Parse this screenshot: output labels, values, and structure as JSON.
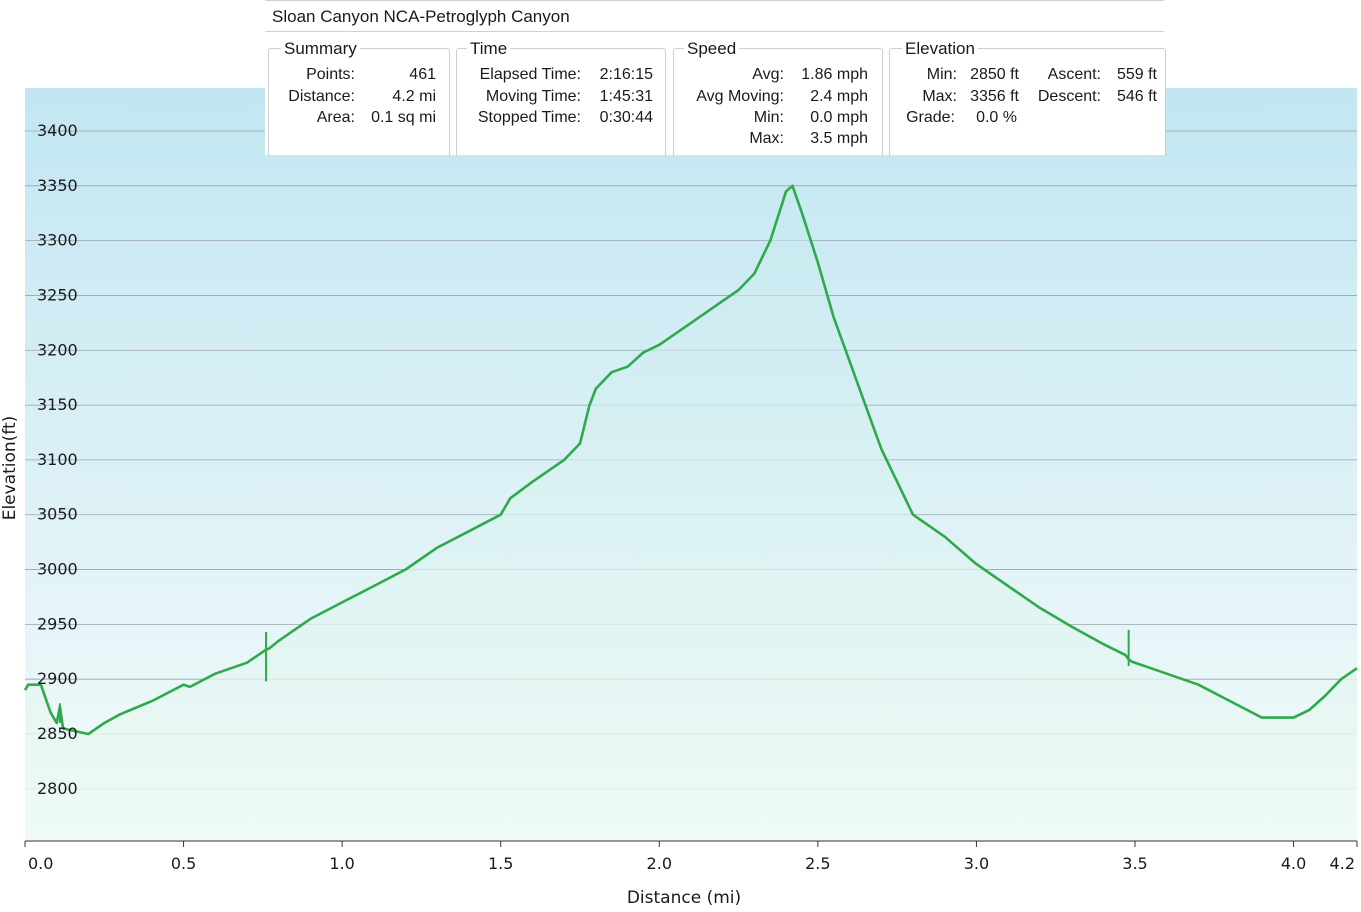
{
  "panel": {
    "title": "Sloan Canyon NCA-Petroglyph Canyon",
    "summary": {
      "heading": "Summary",
      "points_label": "Points:",
      "points": "461",
      "distance_label": "Distance:",
      "distance": "4.2 mi",
      "area_label": "Area:",
      "area": "0.1 sq mi"
    },
    "time": {
      "heading": "Time",
      "elapsed_label": "Elapsed Time:",
      "elapsed": "2:16:15",
      "moving_label": "Moving Time:",
      "moving": "1:45:31",
      "stopped_label": "Stopped Time:",
      "stopped": "0:30:44"
    },
    "speed": {
      "heading": "Speed",
      "avg_label": "Avg:",
      "avg": "1.86 mph",
      "avg_moving_label": "Avg Moving:",
      "avg_moving": "2.4 mph",
      "min_label": "Min:",
      "min": "0.0 mph",
      "max_label": "Max:",
      "max": "3.5 mph"
    },
    "elevation": {
      "heading": "Elevation",
      "min_label": "Min:",
      "min": "2850 ft",
      "max_label": "Max:",
      "max": "3356 ft",
      "grade_label": "Grade:",
      "grade": "0.0 %",
      "ascent_label": "Ascent:",
      "ascent": "559 ft",
      "descent_label": "Descent:",
      "descent": "546 ft"
    }
  },
  "colors": {
    "line": "#2eaa4a",
    "fill_top": "#c6e9ef",
    "fill_bottom": "#eefaf3",
    "plot_top": "#c2e6f2",
    "plot_bottom": "#f4fbfa"
  },
  "chart_data": {
    "type": "area",
    "xlabel": "Distance  (mi)",
    "ylabel": "Elevation(ft)",
    "xlim": [
      0,
      4.2
    ],
    "ylim": [
      2760,
      3460
    ],
    "xticks": [
      "0.0",
      "0.5",
      "1.0",
      "1.5",
      "2.0",
      "2.5",
      "3.0",
      "3.5",
      "4.0",
      "4.2"
    ],
    "xtick_values": [
      0,
      0.5,
      1.0,
      1.5,
      2.0,
      2.5,
      3.0,
      3.5,
      4.0,
      4.2
    ],
    "yticks": [
      "3400",
      "3350",
      "3300",
      "3250",
      "3200",
      "3150",
      "3100",
      "3050",
      "3000",
      "2950",
      "2900",
      "2850",
      "2800"
    ],
    "ytick_values": [
      3400,
      3350,
      3300,
      3250,
      3200,
      3150,
      3100,
      3050,
      3000,
      2950,
      2900,
      2850,
      2800
    ],
    "grid": true,
    "series": [
      {
        "x": [
          0,
          0.01,
          0.05,
          0.08,
          0.1,
          0.11,
          0.12,
          0.2,
          0.25,
          0.3,
          0.4,
          0.5,
          0.52,
          0.6,
          0.7,
          0.75,
          0.76,
          0.77,
          0.8,
          0.9,
          1.0,
          1.1,
          1.2,
          1.3,
          1.4,
          1.5,
          1.53,
          1.6,
          1.7,
          1.75,
          1.78,
          1.8,
          1.85,
          1.9,
          1.95,
          2.0,
          2.1,
          2.2,
          2.25,
          2.3,
          2.35,
          2.4,
          2.42,
          2.45,
          2.5,
          2.55,
          2.6,
          2.65,
          2.7,
          2.8,
          2.9,
          3.0,
          3.1,
          3.2,
          3.3,
          3.4,
          3.47,
          3.48,
          3.49,
          3.55,
          3.7,
          3.8,
          3.9,
          4.0,
          4.05,
          4.1,
          4.15,
          4.2
        ],
        "y": [
          2890,
          2895,
          2895,
          2870,
          2860,
          2875,
          2855,
          2850,
          2860,
          2868,
          2880,
          2895,
          2893,
          2905,
          2915,
          2925,
          2927,
          2928,
          2935,
          2955,
          2970,
          2985,
          3000,
          3020,
          3035,
          3050,
          3065,
          3080,
          3100,
          3115,
          3150,
          3165,
          3180,
          3185,
          3198,
          3205,
          3225,
          3245,
          3255,
          3270,
          3300,
          3345,
          3350,
          3325,
          3280,
          3230,
          3190,
          3150,
          3110,
          3050,
          3030,
          3005,
          2985,
          2965,
          2948,
          2932,
          2922,
          2918,
          2916,
          2910,
          2895,
          2880,
          2865,
          2865,
          2872,
          2885,
          2900,
          2910
        ]
      }
    ],
    "spikes": [
      {
        "x": 0.76,
        "from": 2898,
        "to": 2943
      },
      {
        "x": 0.11,
        "from": 2860,
        "to": 2878
      },
      {
        "x": 3.48,
        "from": 2912,
        "to": 2945
      }
    ]
  }
}
